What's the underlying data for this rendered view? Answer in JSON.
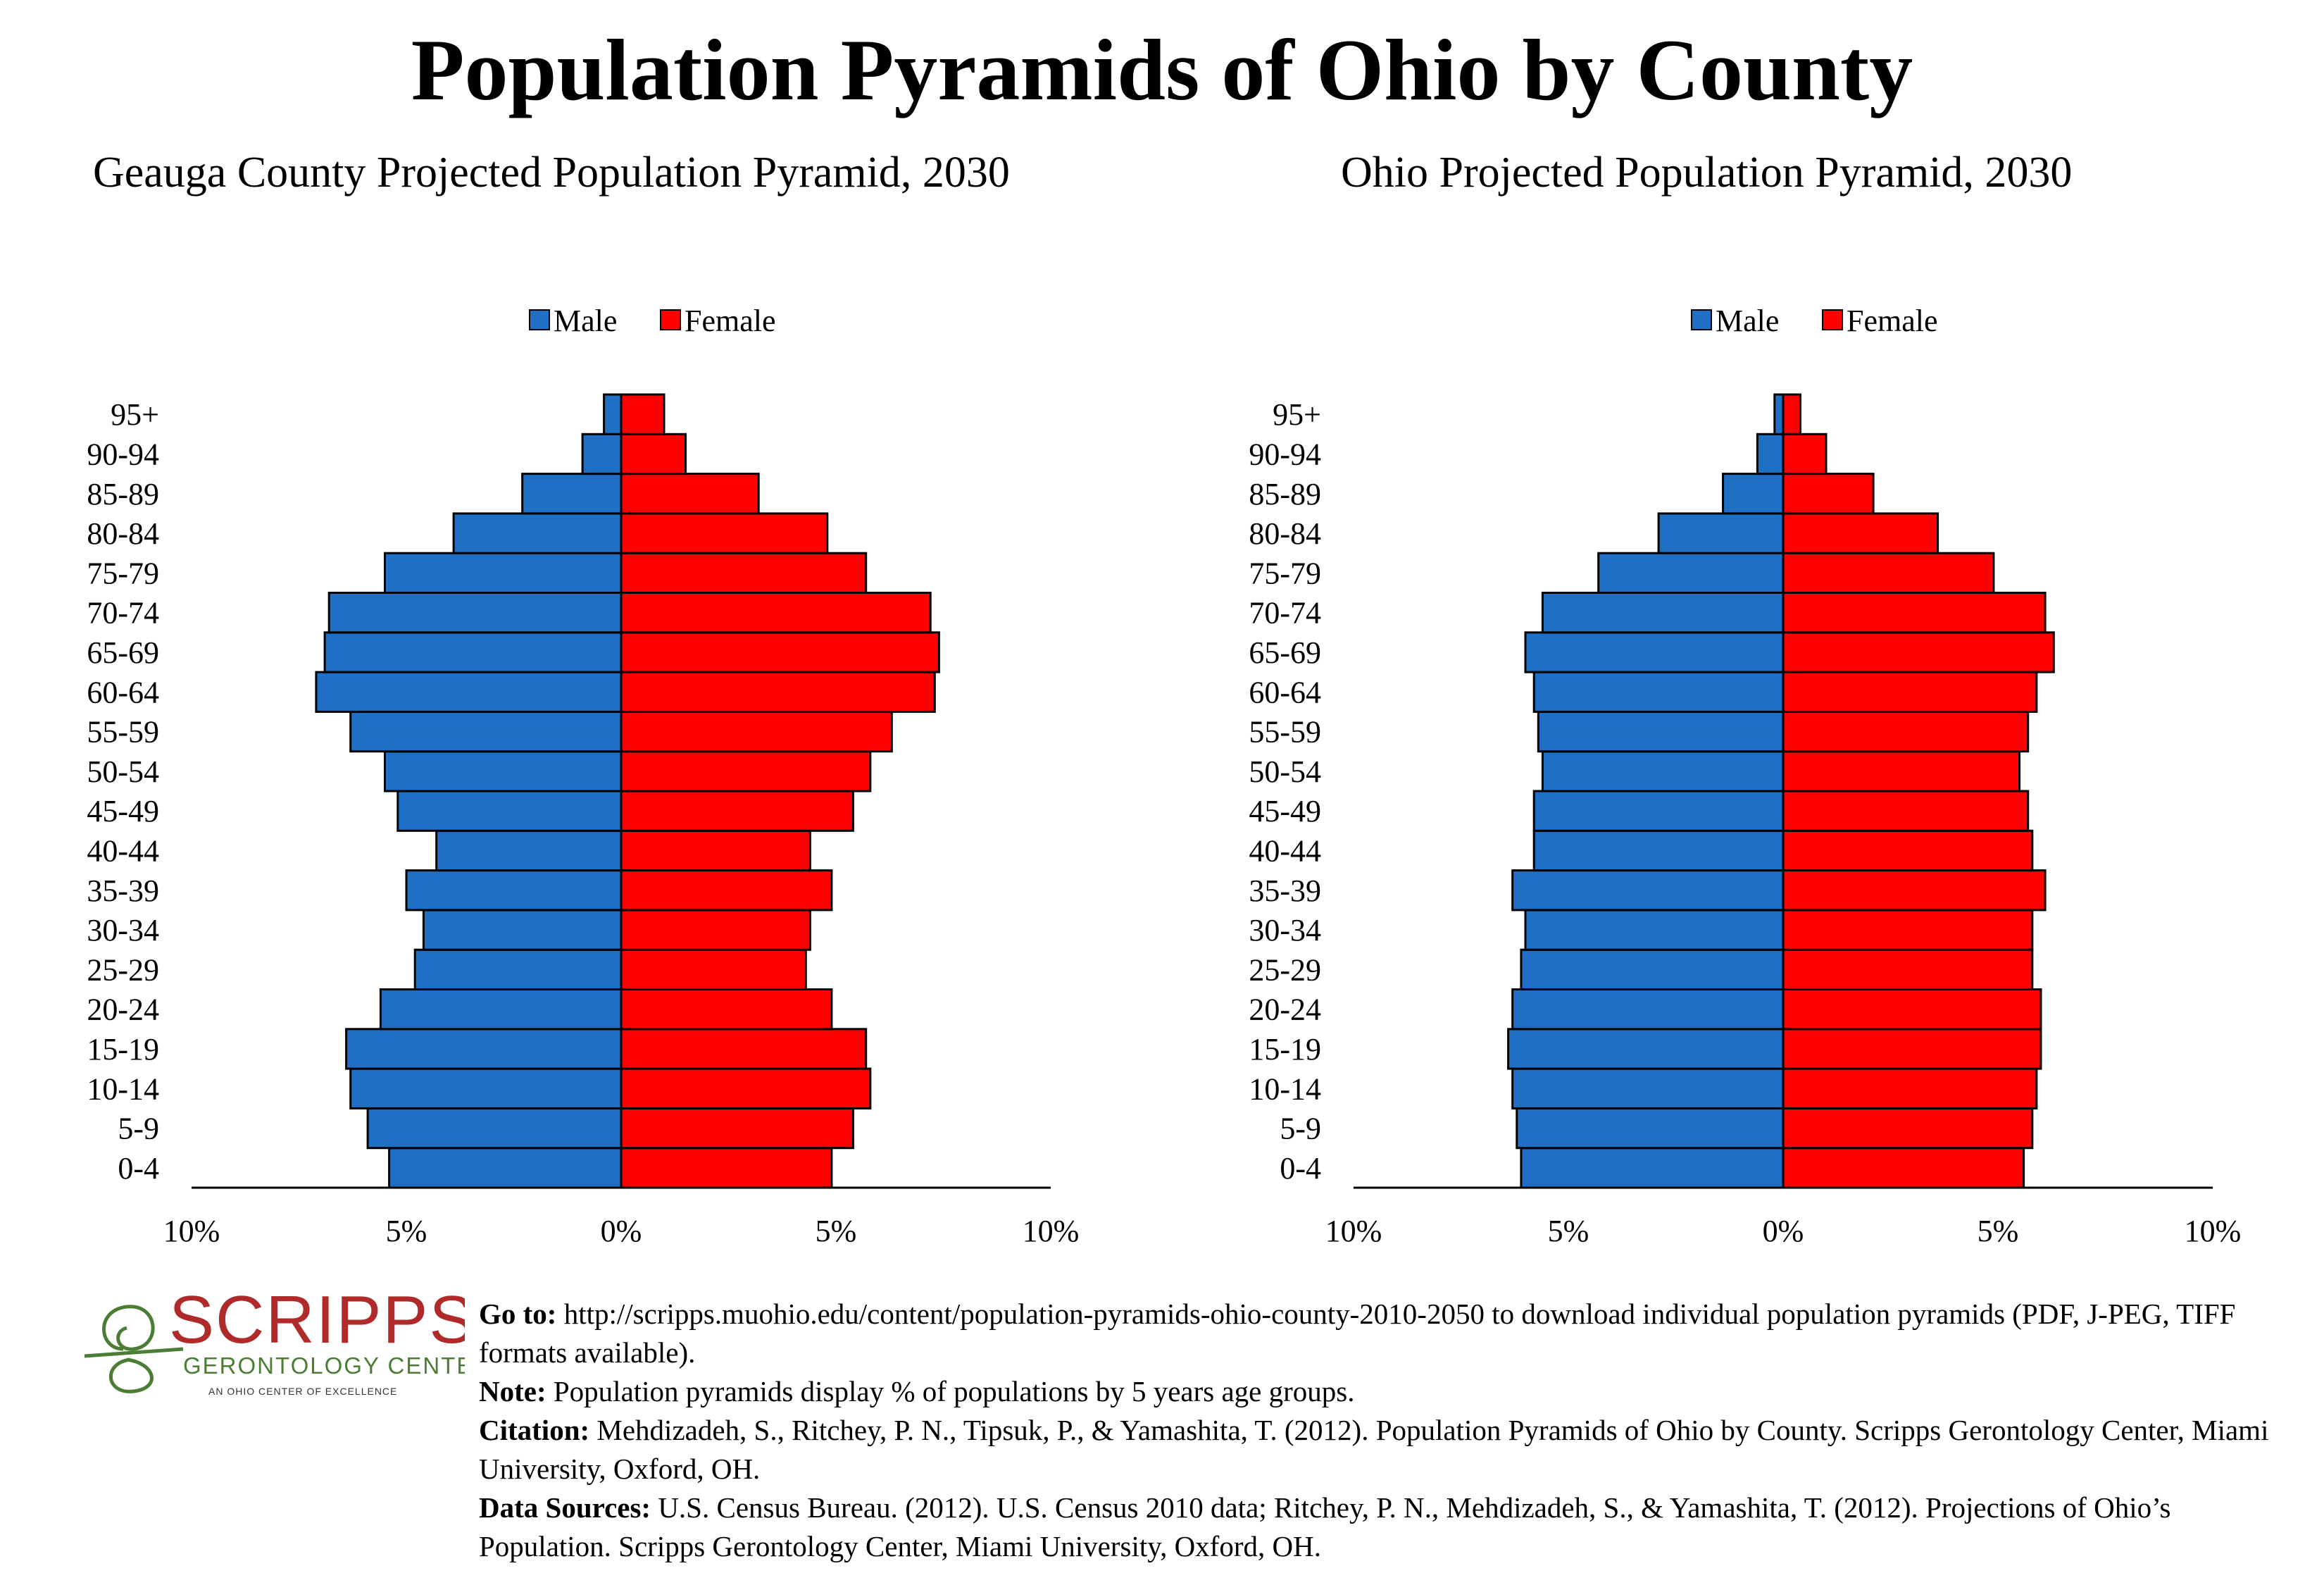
{
  "main_title": "Population Pyramids of Ohio by County",
  "colors": {
    "male": "#1f6fc5",
    "female": "#ff0000"
  },
  "legend": {
    "male": "Male",
    "female": "Female"
  },
  "chart_data": [
    {
      "type": "bar",
      "orientation": "horizontal-diverging",
      "title": "Geauga County Projected Population Pyramid, 2030",
      "categories": [
        "0-4",
        "5-9",
        "10-14",
        "15-19",
        "20-24",
        "25-29",
        "30-34",
        "35-39",
        "40-44",
        "45-49",
        "50-54",
        "55-59",
        "60-64",
        "65-69",
        "70-74",
        "75-79",
        "80-84",
        "85-89",
        "90-94",
        "95+"
      ],
      "series": [
        {
          "name": "Male",
          "values": [
            5.4,
            5.9,
            6.3,
            6.4,
            5.6,
            4.8,
            4.6,
            5.0,
            4.3,
            5.2,
            5.5,
            6.3,
            7.1,
            6.9,
            6.8,
            5.5,
            3.9,
            2.3,
            0.9,
            0.4
          ]
        },
        {
          "name": "Female",
          "values": [
            4.9,
            5.4,
            5.8,
            5.7,
            4.9,
            4.3,
            4.4,
            4.9,
            4.4,
            5.4,
            5.8,
            6.3,
            7.3,
            7.4,
            7.2,
            5.7,
            4.8,
            3.2,
            1.5,
            1.0
          ]
        }
      ],
      "xlim": [
        -10,
        10
      ],
      "x_ticks": [
        "10%",
        "5%",
        "0%",
        "5%",
        "10%"
      ]
    },
    {
      "type": "bar",
      "orientation": "horizontal-diverging",
      "title": "Ohio Projected Population Pyramid, 2030",
      "categories": [
        "0-4",
        "5-9",
        "10-14",
        "15-19",
        "20-24",
        "25-29",
        "30-34",
        "35-39",
        "40-44",
        "45-49",
        "50-54",
        "55-59",
        "60-64",
        "65-69",
        "70-74",
        "75-79",
        "80-84",
        "85-89",
        "90-94",
        "95+"
      ],
      "series": [
        {
          "name": "Male",
          "values": [
            6.1,
            6.2,
            6.3,
            6.4,
            6.3,
            6.1,
            6.0,
            6.3,
            5.8,
            5.8,
            5.6,
            5.7,
            5.8,
            6.0,
            5.6,
            4.3,
            2.9,
            1.4,
            0.6,
            0.2
          ]
        },
        {
          "name": "Female",
          "values": [
            5.6,
            5.8,
            5.9,
            6.0,
            6.0,
            5.8,
            5.8,
            6.1,
            5.8,
            5.7,
            5.5,
            5.7,
            5.9,
            6.3,
            6.1,
            4.9,
            3.6,
            2.1,
            1.0,
            0.4
          ]
        }
      ],
      "xlim": [
        -10,
        10
      ],
      "x_ticks": [
        "10%",
        "5%",
        "0%",
        "5%",
        "10%"
      ]
    }
  ],
  "logo": {
    "name": "SCRIPPS",
    "line2": "GERONTOLOGY CENTER",
    "line3": "AN OHIO CENTER OF EXCELLENCE",
    "color": "#b02a2a",
    "green": "#4c7d34"
  },
  "footer": {
    "goto_label": "Go to:",
    "goto_text": " http://scripps.muohio.edu/content/population-pyramids-ohio-county-2010-2050 to download individual population pyramids (PDF, J-PEG, TIFF formats available).",
    "note_label": "Note:",
    "note_text": " Population pyramids display % of populations by 5 years age groups.",
    "citation_label": "Citation:",
    "citation_text": " Mehdizadeh, S., Ritchey, P. N., Tipsuk, P., & Yamashita, T. (2012). Population Pyramids of Ohio by County. Scripps Gerontology Center, Miami University, Oxford, OH.",
    "sources_label": "Data Sources:",
    "sources_text": " U.S. Census Bureau. (2012). U.S. Census 2010 data; Ritchey, P. N., Mehdizadeh, S., & Yamashita, T. (2012). Projections of Ohio’s Population. Scripps Gerontology Center, Miami University, Oxford, OH."
  }
}
